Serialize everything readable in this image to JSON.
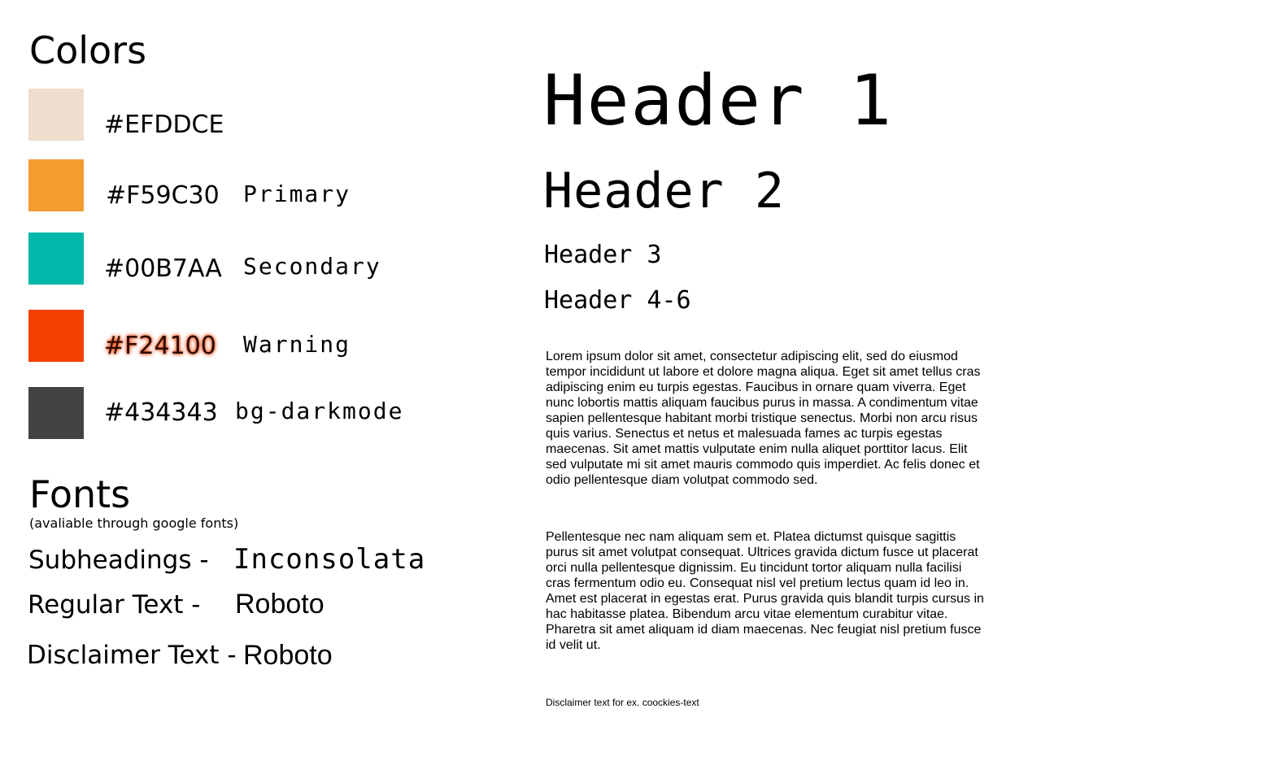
{
  "colors": {
    "title": "Colors",
    "swatches": [
      {
        "hex": "#EFDDCE",
        "role": "",
        "color": "#EFDDCE"
      },
      {
        "hex": "#F59C30",
        "role": "Primary",
        "color": "#F59C30"
      },
      {
        "hex": "#00B7AA",
        "role": "Secondary",
        "color": "#00B7AA"
      },
      {
        "hex": "#F24100",
        "role": "Warning",
        "color": "#F24100"
      },
      {
        "hex": "#434343",
        "role": "bg-darkmode",
        "color": "#434343"
      }
    ]
  },
  "fonts": {
    "title": "Fonts",
    "note": "(avaliable through google fonts)",
    "items": [
      {
        "label": "Subheadings -",
        "font": "Inconsolata"
      },
      {
        "label": "Regular Text -",
        "font": "Roboto"
      },
      {
        "label": "Disclaimer Text -",
        "font": "Roboto"
      }
    ]
  },
  "typography": {
    "h1": "Header 1",
    "h2": "Header 2",
    "h3": "Header 3",
    "h4": "Header 4-6",
    "paragraph1": "Lorem ipsum dolor sit amet, consectetur adipiscing elit, sed do eiusmod tempor incididunt ut labore et dolore magna aliqua. Eget sit amet tellus cras adipiscing enim eu turpis egestas. Faucibus in ornare quam viverra. Eget nunc lobortis mattis aliquam faucibus purus in massa. A condimentum vitae sapien pellentesque habitant morbi tristique senectus. Morbi non arcu risus quis varius. Senectus et netus et malesuada fames ac turpis egestas maecenas. Sit amet mattis vulputate enim nulla aliquet porttitor lacus. Elit sed vulputate mi sit amet mauris commodo quis imperdiet. Ac felis donec et odio pellentesque diam volutpat commodo sed.",
    "paragraph2": "Pellentesque nec nam aliquam sem et. Platea dictumst quisque sagittis purus sit amet volutpat consequat. Ultrices gravida dictum fusce ut placerat orci nulla pellentesque dignissim. Eu tincidunt tortor aliquam nulla facilisi cras fermentum odio eu. Consequat nisl vel pretium lectus quam id leo in. Amet est placerat in egestas erat. Purus gravida quis blandit turpis cursus in hac habitasse platea. Bibendum arcu vitae elementum curabitur vitae. Pharetra sit amet aliquam id diam maecenas. Nec feugiat nisl pretium fusce id velit ut.",
    "disclaimer": "Disclaimer text for ex. coockies-text"
  }
}
